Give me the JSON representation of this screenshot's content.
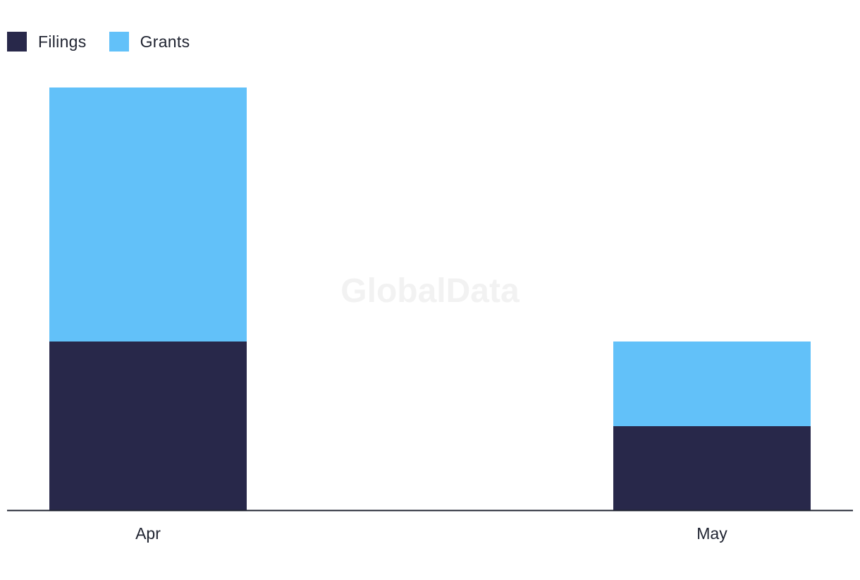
{
  "chart_data": {
    "type": "bar",
    "stacked": true,
    "categories": [
      "Apr",
      "May"
    ],
    "series": [
      {
        "name": "Filings",
        "values": [
          2,
          1
        ],
        "color": "#28284a"
      },
      {
        "name": "Grants",
        "values": [
          3,
          1
        ],
        "color": "#62c1f9"
      }
    ],
    "ylim": [
      0,
      5
    ],
    "grid": false,
    "legend_position": "top-left",
    "title": "",
    "xlabel": "",
    "ylabel": ""
  },
  "watermark": "GlobalData"
}
